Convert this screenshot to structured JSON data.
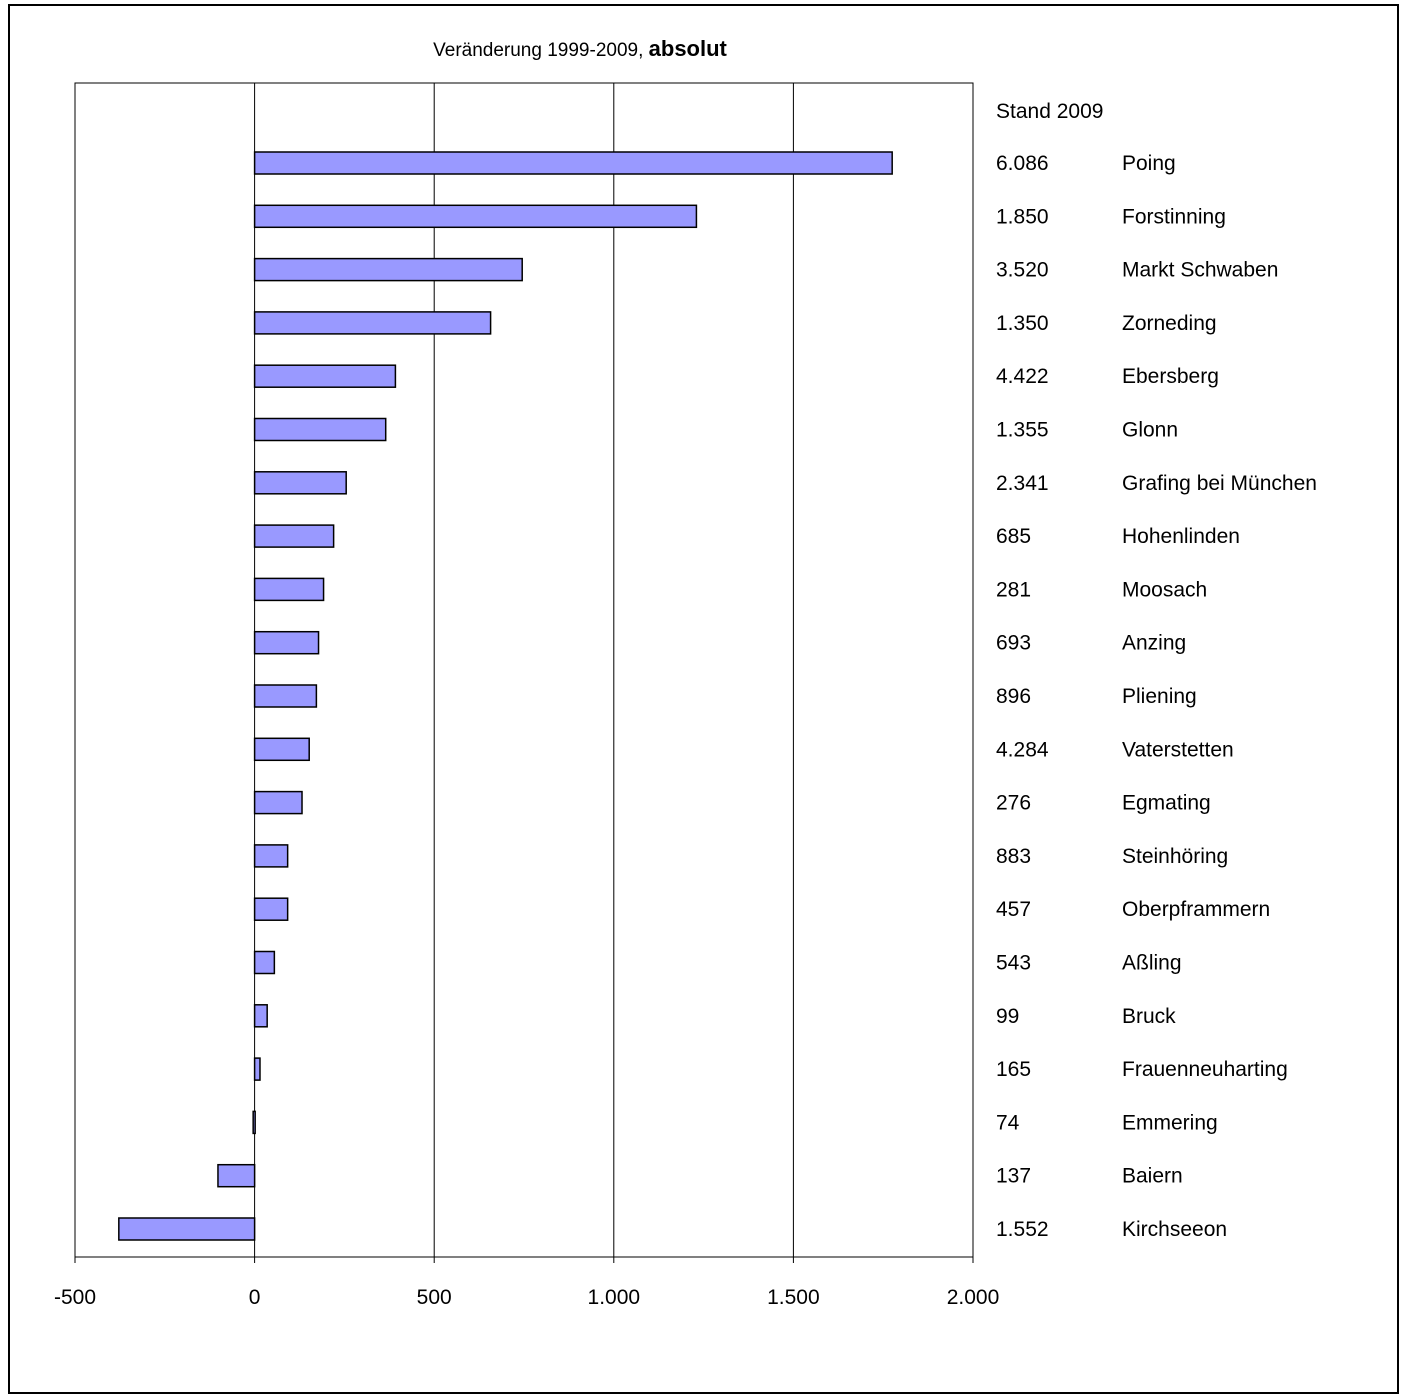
{
  "corner_label": "",
  "chart_data": {
    "type": "bar",
    "orientation": "horizontal",
    "title": "Veränderung 1999-2009,",
    "title_emphasis": "absolut",
    "side_header": "Stand 2009",
    "categories": [
      "Poing",
      "Forstinning",
      "Markt Schwaben",
      "Zorneding",
      "Ebersberg",
      "Glonn",
      "Grafing bei München",
      "Hohenlinden",
      "Moosach",
      "Anzing",
      "Pliening",
      "Vaterstetten",
      "Egmating",
      "Steinhöring",
      "Oberpframmern",
      "Aßling",
      "Bruck",
      "Frauenneuharting",
      "Emmering",
      "Baiern",
      "Kirchseeon"
    ],
    "stand_2009": [
      "6.086",
      "1.850",
      "3.520",
      "1.350",
      "4.422",
      "1.355",
      "2.341",
      "685",
      "281",
      "693",
      "896",
      "4.284",
      "276",
      "883",
      "457",
      "543",
      "99",
      "165",
      "74",
      "137",
      "1.552"
    ],
    "values": [
      1775,
      1230,
      745,
      657,
      392,
      365,
      255,
      220,
      192,
      178,
      172,
      152,
      132,
      92,
      92,
      55,
      35,
      15,
      -4,
      -102,
      -378
    ],
    "xlim": [
      -500,
      2000
    ],
    "xticks": [
      -500,
      0,
      500,
      1000,
      1500,
      2000
    ],
    "xtick_labels": [
      "-500",
      "0",
      "500",
      "1.000",
      "1.500",
      "2.000"
    ],
    "grid": "vertical major gridlines",
    "colors": {
      "bar_fill": "#9999ff",
      "bar_stroke": "#000000"
    }
  }
}
